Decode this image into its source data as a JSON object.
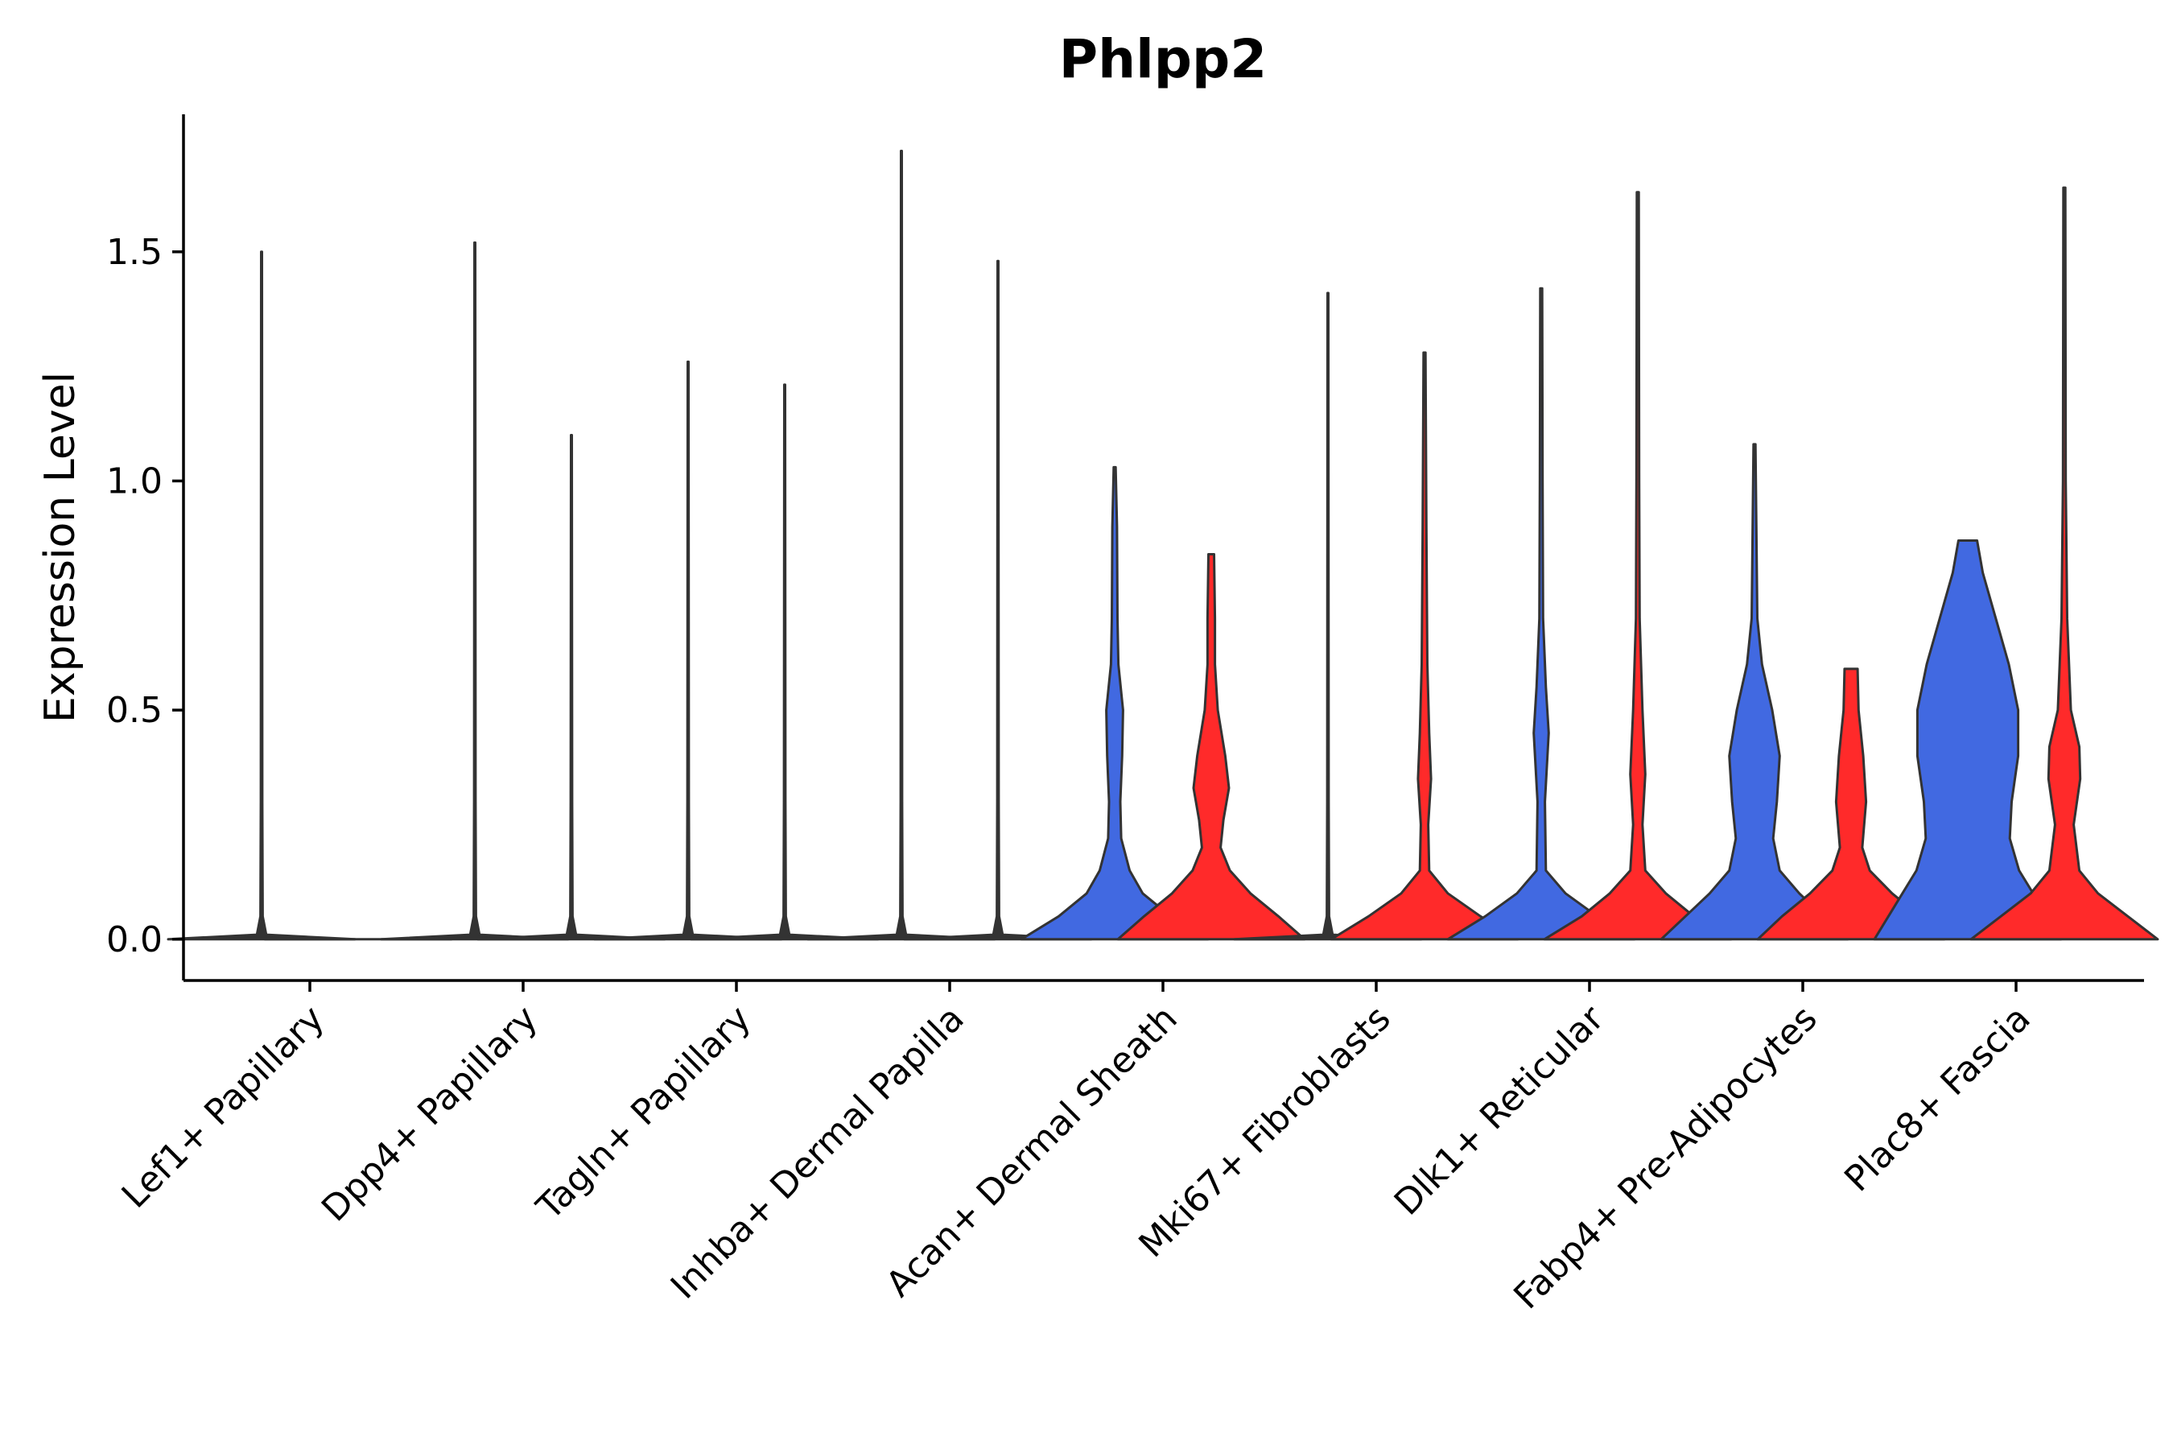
{
  "chart_data": {
    "type": "violin",
    "title": "Phlpp2",
    "xlabel": "",
    "ylabel": "Expression Level",
    "ylim": [
      -0.09,
      1.8
    ],
    "yticks": [
      "0.0",
      "0.5",
      "1.0",
      "1.5"
    ],
    "ytick_values": [
      0,
      0.5,
      1.0,
      1.5
    ],
    "grid": false,
    "colors": {
      "blue": "#4169E1",
      "red": "#FF2A2A",
      "outline": "#333333"
    },
    "categories": [
      "Lef1+ Papillary",
      "Dpp4+ Papillary",
      "Tagln+ Papillary",
      "Inhba+ Dermal Papilla",
      "Acan+ Dermal Sheath",
      "Mki67+ Fibroblasts",
      "Dlk1+ Reticular",
      "Fabp4+ Pre-Adipocytes",
      "Plac8+ Fascia"
    ],
    "violins": [
      {
        "category": "Lef1+ Papillary",
        "group": "blue",
        "max": 1.5,
        "density": [
          [
            0,
            1.0
          ],
          [
            0.01,
            0.05
          ],
          [
            0.05,
            0.012
          ],
          [
            0.3,
            0.008
          ],
          [
            1.5,
            0.004
          ]
        ]
      },
      {
        "category": "Lef1+ Papillary",
        "group": "red",
        "max": 0.0,
        "density": []
      },
      {
        "category": "Dpp4+ Papillary",
        "group": "blue",
        "max": 1.52,
        "density": [
          [
            0,
            1.0
          ],
          [
            0.01,
            0.05
          ],
          [
            0.05,
            0.012
          ],
          [
            0.3,
            0.008
          ],
          [
            1.52,
            0.004
          ]
        ]
      },
      {
        "category": "Dpp4+ Papillary",
        "group": "red",
        "max": 1.1,
        "density": [
          [
            0,
            1.0
          ],
          [
            0.01,
            0.05
          ],
          [
            0.05,
            0.012
          ],
          [
            0.3,
            0.008
          ],
          [
            1.1,
            0.004
          ]
        ]
      },
      {
        "category": "Tagln+ Papillary",
        "group": "blue",
        "max": 1.26,
        "density": [
          [
            0,
            1.0
          ],
          [
            0.01,
            0.05
          ],
          [
            0.05,
            0.012
          ],
          [
            0.3,
            0.008
          ],
          [
            1.26,
            0.004
          ]
        ]
      },
      {
        "category": "Tagln+ Papillary",
        "group": "red",
        "max": 1.21,
        "density": [
          [
            0,
            1.0
          ],
          [
            0.01,
            0.05
          ],
          [
            0.05,
            0.012
          ],
          [
            0.3,
            0.008
          ],
          [
            1.21,
            0.004
          ]
        ]
      },
      {
        "category": "Inhba+ Dermal Papilla",
        "group": "blue",
        "max": 1.72,
        "density": [
          [
            0,
            1.0
          ],
          [
            0.01,
            0.05
          ],
          [
            0.05,
            0.012
          ],
          [
            0.3,
            0.008
          ],
          [
            1.72,
            0.004
          ]
        ]
      },
      {
        "category": "Inhba+ Dermal Papilla",
        "group": "red",
        "max": 1.48,
        "density": [
          [
            0,
            1.0
          ],
          [
            0.01,
            0.05
          ],
          [
            0.05,
            0.012
          ],
          [
            0.3,
            0.008
          ],
          [
            1.48,
            0.004
          ]
        ]
      },
      {
        "category": "Acan+ Dermal Sheath",
        "group": "blue",
        "max": 1.03,
        "density": [
          [
            0,
            1.0
          ],
          [
            0.05,
            0.6
          ],
          [
            0.1,
            0.3
          ],
          [
            0.15,
            0.16
          ],
          [
            0.22,
            0.07
          ],
          [
            0.3,
            0.06
          ],
          [
            0.4,
            0.08
          ],
          [
            0.5,
            0.09
          ],
          [
            0.6,
            0.04
          ],
          [
            0.7,
            0.03
          ],
          [
            0.9,
            0.025
          ],
          [
            1.03,
            0.01
          ]
        ]
      },
      {
        "category": "Acan+ Dermal Sheath",
        "group": "red",
        "max": 0.84,
        "density": [
          [
            0,
            1.0
          ],
          [
            0.05,
            0.72
          ],
          [
            0.1,
            0.42
          ],
          [
            0.15,
            0.2
          ],
          [
            0.2,
            0.1
          ],
          [
            0.26,
            0.13
          ],
          [
            0.33,
            0.19
          ],
          [
            0.4,
            0.15
          ],
          [
            0.5,
            0.07
          ],
          [
            0.6,
            0.04
          ],
          [
            0.7,
            0.04
          ],
          [
            0.84,
            0.03
          ]
        ]
      },
      {
        "category": "Mki67+ Fibroblasts",
        "group": "blue",
        "max": 1.41,
        "density": [
          [
            0,
            1.0
          ],
          [
            0.01,
            0.05
          ],
          [
            0.05,
            0.012
          ],
          [
            0.3,
            0.008
          ],
          [
            1.41,
            0.004
          ]
        ]
      },
      {
        "category": "Mki67+ Fibroblasts",
        "group": "red",
        "max": 1.28,
        "density": [
          [
            0,
            1.0
          ],
          [
            0.05,
            0.6
          ],
          [
            0.1,
            0.25
          ],
          [
            0.15,
            0.05
          ],
          [
            0.25,
            0.04
          ],
          [
            0.35,
            0.07
          ],
          [
            0.45,
            0.05
          ],
          [
            0.6,
            0.03
          ],
          [
            0.9,
            0.02
          ],
          [
            1.28,
            0.01
          ]
        ]
      },
      {
        "category": "Dlk1+ Reticular",
        "group": "blue",
        "max": 1.42,
        "density": [
          [
            0,
            1.0
          ],
          [
            0.05,
            0.6
          ],
          [
            0.1,
            0.26
          ],
          [
            0.15,
            0.05
          ],
          [
            0.3,
            0.04
          ],
          [
            0.45,
            0.08
          ],
          [
            0.55,
            0.05
          ],
          [
            0.7,
            0.02
          ],
          [
            1.0,
            0.015
          ],
          [
            1.42,
            0.01
          ]
        ]
      },
      {
        "category": "Dlk1+ Reticular",
        "group": "red",
        "max": 1.63,
        "density": [
          [
            0,
            1.0
          ],
          [
            0.05,
            0.6
          ],
          [
            0.1,
            0.3
          ],
          [
            0.15,
            0.08
          ],
          [
            0.25,
            0.05
          ],
          [
            0.36,
            0.08
          ],
          [
            0.5,
            0.05
          ],
          [
            0.7,
            0.02
          ],
          [
            1.0,
            0.015
          ],
          [
            1.63,
            0.01
          ]
        ]
      },
      {
        "category": "Fabp4+ Pre-Adipocytes",
        "group": "blue",
        "max": 1.08,
        "density": [
          [
            0,
            1.0
          ],
          [
            0.05,
            0.74
          ],
          [
            0.1,
            0.48
          ],
          [
            0.15,
            0.27
          ],
          [
            0.22,
            0.2
          ],
          [
            0.3,
            0.24
          ],
          [
            0.4,
            0.27
          ],
          [
            0.5,
            0.19
          ],
          [
            0.6,
            0.08
          ],
          [
            0.7,
            0.03
          ],
          [
            0.9,
            0.02
          ],
          [
            1.08,
            0.01
          ]
        ]
      },
      {
        "category": "Fabp4+ Pre-Adipocytes",
        "group": "red",
        "max": 0.59,
        "density": [
          [
            0,
            1.0
          ],
          [
            0.05,
            0.74
          ],
          [
            0.1,
            0.44
          ],
          [
            0.15,
            0.2
          ],
          [
            0.2,
            0.12
          ],
          [
            0.3,
            0.16
          ],
          [
            0.4,
            0.13
          ],
          [
            0.5,
            0.08
          ],
          [
            0.59,
            0.07
          ]
        ]
      },
      {
        "category": "Plac8+ Fascia",
        "group": "blue",
        "max": 0.87,
        "density": [
          [
            0,
            1.0
          ],
          [
            0.05,
            0.85
          ],
          [
            0.1,
            0.7
          ],
          [
            0.15,
            0.55
          ],
          [
            0.22,
            0.45
          ],
          [
            0.3,
            0.47
          ],
          [
            0.4,
            0.54
          ],
          [
            0.5,
            0.54
          ],
          [
            0.6,
            0.44
          ],
          [
            0.7,
            0.3
          ],
          [
            0.8,
            0.16
          ],
          [
            0.87,
            0.1
          ]
        ]
      },
      {
        "category": "Plac8+ Fascia",
        "group": "red",
        "max": 1.64,
        "density": [
          [
            0,
            1.0
          ],
          [
            0.05,
            0.68
          ],
          [
            0.1,
            0.36
          ],
          [
            0.15,
            0.16
          ],
          [
            0.25,
            0.1
          ],
          [
            0.35,
            0.17
          ],
          [
            0.42,
            0.16
          ],
          [
            0.5,
            0.07
          ],
          [
            0.7,
            0.03
          ],
          [
            1.0,
            0.015
          ],
          [
            1.64,
            0.01
          ]
        ]
      }
    ]
  }
}
